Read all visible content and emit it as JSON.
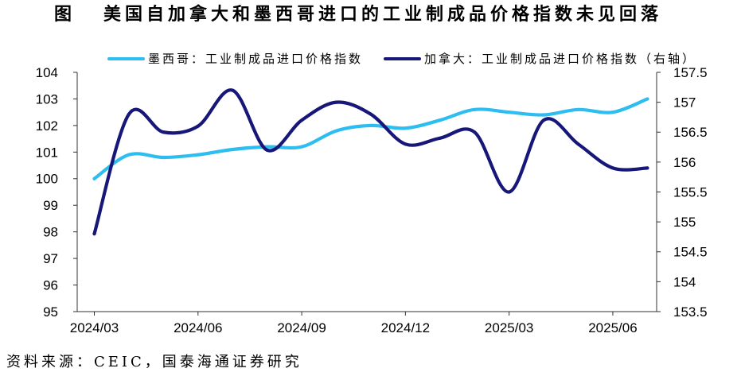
{
  "header": {
    "figure_label": "图"
  },
  "source": "资料来源：CEIC，国泰海通证券研究",
  "colors": {
    "axis": "#333333",
    "text": "#000000"
  },
  "chart_data": {
    "type": "line",
    "title": "美国自加拿大和墨西哥进口的工业制成品价格指数未见回落",
    "smooth": true,
    "grid": false,
    "legend_position": "top",
    "x": [
      "2024/03",
      "2024/04",
      "2024/05",
      "2024/06",
      "2024/07",
      "2024/08",
      "2024/09",
      "2024/10",
      "2024/11",
      "2024/12",
      "2025/01",
      "2025/02",
      "2025/03",
      "2025/04",
      "2025/05",
      "2025/06",
      "2025/07"
    ],
    "x_tick_labels": [
      "2024/03",
      "2024/06",
      "2024/09",
      "2024/12",
      "2025/03",
      "2025/06"
    ],
    "y_left": {
      "range": [
        95,
        104
      ],
      "ticks": [
        104,
        103,
        102,
        101,
        100,
        99,
        98,
        97,
        96,
        95
      ]
    },
    "y_right": {
      "range": [
        153.5,
        157.5
      ],
      "ticks": [
        157.5,
        157,
        156.5,
        156,
        155.5,
        155,
        154.5,
        154,
        153.5
      ]
    },
    "series": [
      {
        "name": "墨西哥：工业制成品进口价格指数",
        "axis": "left",
        "color": "#2dbdf0",
        "values": [
          100.0,
          100.9,
          100.8,
          100.9,
          101.1,
          101.2,
          101.2,
          101.8,
          102.0,
          101.9,
          102.2,
          102.6,
          102.5,
          102.4,
          102.6,
          102.5,
          103.0
        ]
      },
      {
        "name": "加拿大：工业制成品进口价格指数（右轴）",
        "axis": "right",
        "color": "#17177a",
        "values": [
          154.8,
          156.8,
          156.5,
          156.6,
          157.2,
          156.2,
          156.7,
          157.0,
          156.8,
          156.3,
          156.4,
          156.5,
          155.5,
          156.7,
          156.3,
          155.9,
          155.9
        ]
      }
    ]
  }
}
